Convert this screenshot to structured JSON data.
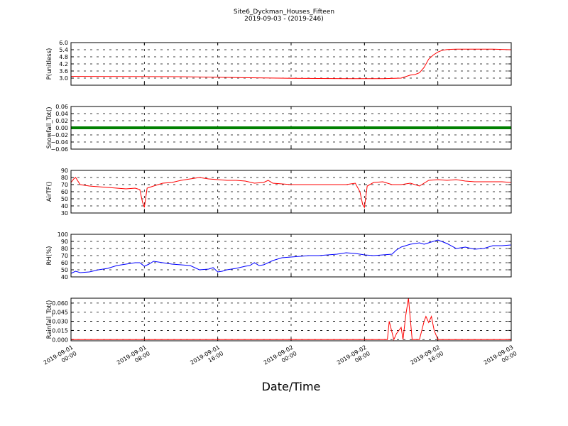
{
  "figure": {
    "title": "Site6_Dyckman_Houses_Fifteen",
    "subtitle": "2019-09-03 - (2019-246)",
    "xlabel": "Date/Time"
  },
  "chart_data": [
    {
      "type": "line",
      "ylabel": "P(unitless)",
      "color": "#ff0000",
      "xlim": [
        0,
        48
      ],
      "ylim": [
        2.4,
        6.0
      ],
      "yticks": [
        "6.0",
        "5.4",
        "4.8",
        "4.2",
        "3.6",
        "3.0"
      ],
      "ytick_values": [
        6.0,
        5.4,
        4.8,
        4.2,
        3.6,
        3.0
      ],
      "grid": true,
      "x": [
        0,
        6,
        12,
        18,
        24,
        30,
        34,
        36,
        37,
        37.5,
        38,
        38.5,
        39,
        39.5,
        40,
        40.5,
        41,
        42,
        44,
        46,
        48
      ],
      "y": [
        3.15,
        3.14,
        3.12,
        3.05,
        2.98,
        2.95,
        2.95,
        3.0,
        3.25,
        3.3,
        3.45,
        3.9,
        4.6,
        4.95,
        5.2,
        5.35,
        5.42,
        5.45,
        5.45,
        5.44,
        5.4
      ]
    },
    {
      "type": "line",
      "ylabel": "Snowfall_Tot()",
      "color": "#008000",
      "xlim": [
        0,
        48
      ],
      "ylim": [
        -0.06,
        0.06
      ],
      "yticks": [
        "0.06",
        "0.04",
        "0.02",
        "0.00",
        "−0.02",
        "−0.04",
        "−0.06"
      ],
      "ytick_values": [
        0.06,
        0.04,
        0.02,
        0.0,
        -0.02,
        -0.04,
        -0.06
      ],
      "grid": true,
      "x": [
        0,
        48
      ],
      "y": [
        0.0,
        0.0
      ]
    },
    {
      "type": "line",
      "ylabel": "AirTF()",
      "color": "#ff0000",
      "xlim": [
        0,
        48
      ],
      "ylim": [
        30,
        90
      ],
      "yticks": [
        "90",
        "80",
        "70",
        "60",
        "50",
        "40",
        "30"
      ],
      "ytick_values": [
        90,
        80,
        70,
        60,
        50,
        40,
        30
      ],
      "grid": true,
      "x": [
        0,
        0.3,
        0.5,
        1,
        2,
        3,
        4,
        5,
        6,
        7,
        7.5,
        7.8,
        8,
        8.3,
        9,
        10,
        11,
        12,
        13,
        14,
        15,
        16,
        17,
        18,
        19,
        20,
        21,
        21.5,
        22,
        23,
        24,
        26,
        28,
        30,
        31,
        31.5,
        31.8,
        32,
        32.3,
        33,
        34,
        35,
        36,
        37,
        38,
        39,
        40,
        41,
        42,
        43,
        44,
        45,
        46,
        47,
        48
      ],
      "y": [
        73,
        78,
        80,
        70,
        68,
        67,
        66,
        65,
        64,
        65,
        63,
        45,
        38,
        65,
        68,
        72,
        73,
        76,
        78,
        80,
        78,
        77,
        76,
        76,
        75,
        72,
        73,
        76,
        72,
        71,
        70,
        70,
        70,
        70,
        72,
        60,
        42,
        38,
        68,
        73,
        74,
        70,
        70,
        72,
        68,
        76,
        77,
        76,
        77,
        75,
        74,
        74,
        74,
        74,
        73
      ]
    },
    {
      "type": "line",
      "ylabel": "RH(%)",
      "color": "#0000ff",
      "xlim": [
        0,
        48
      ],
      "ylim": [
        40,
        100
      ],
      "yticks": [
        "100",
        "90",
        "80",
        "70",
        "60",
        "50",
        "40"
      ],
      "ytick_values": [
        100,
        90,
        80,
        70,
        60,
        50,
        40
      ],
      "grid": true,
      "x": [
        0,
        0.5,
        1,
        2,
        3,
        4,
        5,
        6,
        7,
        7.5,
        8,
        8.5,
        9,
        10,
        11,
        12,
        13,
        14,
        15,
        15.5,
        16,
        16.5,
        17,
        18,
        19,
        19.5,
        20,
        20.5,
        21,
        22,
        23,
        24,
        25,
        26,
        27,
        28,
        29,
        30,
        31,
        31.5,
        32,
        33,
        34,
        35,
        35.5,
        36,
        37,
        38,
        38.5,
        39,
        40,
        41,
        42,
        43,
        44,
        45,
        46,
        47,
        48
      ],
      "y": [
        45,
        48,
        46,
        47,
        50,
        52,
        56,
        58,
        60,
        60,
        55,
        58,
        62,
        60,
        58,
        57,
        56,
        50,
        51,
        53,
        47,
        48,
        50,
        52,
        55,
        56,
        60,
        56,
        57,
        63,
        67,
        68,
        69,
        70,
        70,
        71,
        72,
        74,
        73,
        72,
        71,
        70,
        71,
        72,
        78,
        82,
        86,
        88,
        86,
        88,
        92,
        87,
        80,
        82,
        79,
        80,
        84,
        84,
        85
      ]
    },
    {
      "type": "line",
      "ylabel": "Rainfall_Tot()",
      "color": "#ff0000",
      "xlim": [
        0,
        48
      ],
      "ylim": [
        -0.002,
        0.068
      ],
      "yticks": [
        "0.060",
        "0.045",
        "0.030",
        "0.015",
        "0.000"
      ],
      "ytick_values": [
        0.06,
        0.045,
        0.03,
        0.015,
        0.0
      ],
      "grid": true,
      "x": [
        0,
        34.5,
        34.7,
        35.2,
        35.5,
        36,
        36.2,
        36.5,
        36.8,
        37.2,
        37.5,
        38.0,
        38.5,
        38.7,
        39.0,
        39.3,
        39.6,
        40,
        48
      ],
      "y": [
        0,
        0,
        0.03,
        0.0,
        0.01,
        0.02,
        0.0,
        0.04,
        0.068,
        0.0,
        0.0,
        0.0,
        0.03,
        0.038,
        0.028,
        0.038,
        0.015,
        0.0,
        0.0
      ]
    }
  ],
  "x_axis": {
    "ticks": [
      {
        "value": 0,
        "line1": "2019-09-01",
        "line2": "00:00"
      },
      {
        "value": 8,
        "line1": "2019-09-01",
        "line2": "08:00"
      },
      {
        "value": 16,
        "line1": "2019-09-01",
        "line2": "16:00"
      },
      {
        "value": 24,
        "line1": "2019-09-02",
        "line2": "00:00"
      },
      {
        "value": 32,
        "line1": "2019-09-02",
        "line2": "08:00"
      },
      {
        "value": 40,
        "line1": "2019-09-02",
        "line2": "16:00"
      },
      {
        "value": 48,
        "line1": "2019-09-03",
        "line2": "00:00"
      }
    ]
  }
}
